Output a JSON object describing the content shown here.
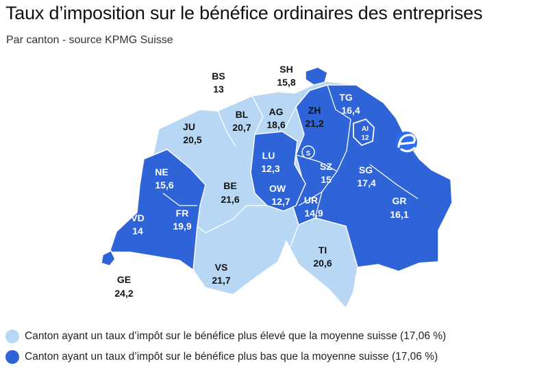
{
  "title": "Taux d’imposition sur le bénéfice ordinaires des entreprises",
  "subtitle": "Par canton - source KPMG Suisse",
  "colors": {
    "high": "#b7d7f5",
    "low": "#2f63d8",
    "border": "#ffffff"
  },
  "cantons": {
    "BS": {
      "name": "BS",
      "rate": "13"
    },
    "SH": {
      "name": "SH",
      "rate": "15,8"
    },
    "BL": {
      "name": "BL",
      "rate": "20,7"
    },
    "AG": {
      "name": "AG",
      "rate": "18,6"
    },
    "ZH": {
      "name": "ZH",
      "rate": "21,2"
    },
    "TG": {
      "name": "TG",
      "rate": "16,4"
    },
    "AI": {
      "name": "AI",
      "rate": "12"
    },
    "JU": {
      "name": "JU",
      "rate": "20,5"
    },
    "LU": {
      "name": "LU",
      "rate": "12,3"
    },
    "SZ": {
      "name": "SZ",
      "rate": "15"
    },
    "SG": {
      "name": "SG",
      "rate": "17,4"
    },
    "NE": {
      "name": "NE",
      "rate": "15,6"
    },
    "BE": {
      "name": "BE",
      "rate": "21,6"
    },
    "OW": {
      "name": "OW",
      "rate": "12,7"
    },
    "UR": {
      "name": "UR",
      "rate": "14,9"
    },
    "GR": {
      "name": "GR",
      "rate": "16,1"
    },
    "VD": {
      "name": "VD",
      "rate": "14"
    },
    "FR": {
      "name": "FR",
      "rate": "19,9"
    },
    "TI": {
      "name": "TI",
      "rate": "20,6"
    },
    "VS": {
      "name": "VS",
      "rate": "21,7"
    },
    "GE": {
      "name": "GE",
      "rate": "24,2"
    }
  },
  "legend": [
    {
      "label": "Canton ayant un taux d’impôt sur le bénéfice plus élevé que la moyenne suisse (17,06 %)"
    },
    {
      "label": "Canton ayant un taux d’impôt sur le bénéfice plus bas que la moyenne suisse (17,06 %)"
    }
  ]
}
